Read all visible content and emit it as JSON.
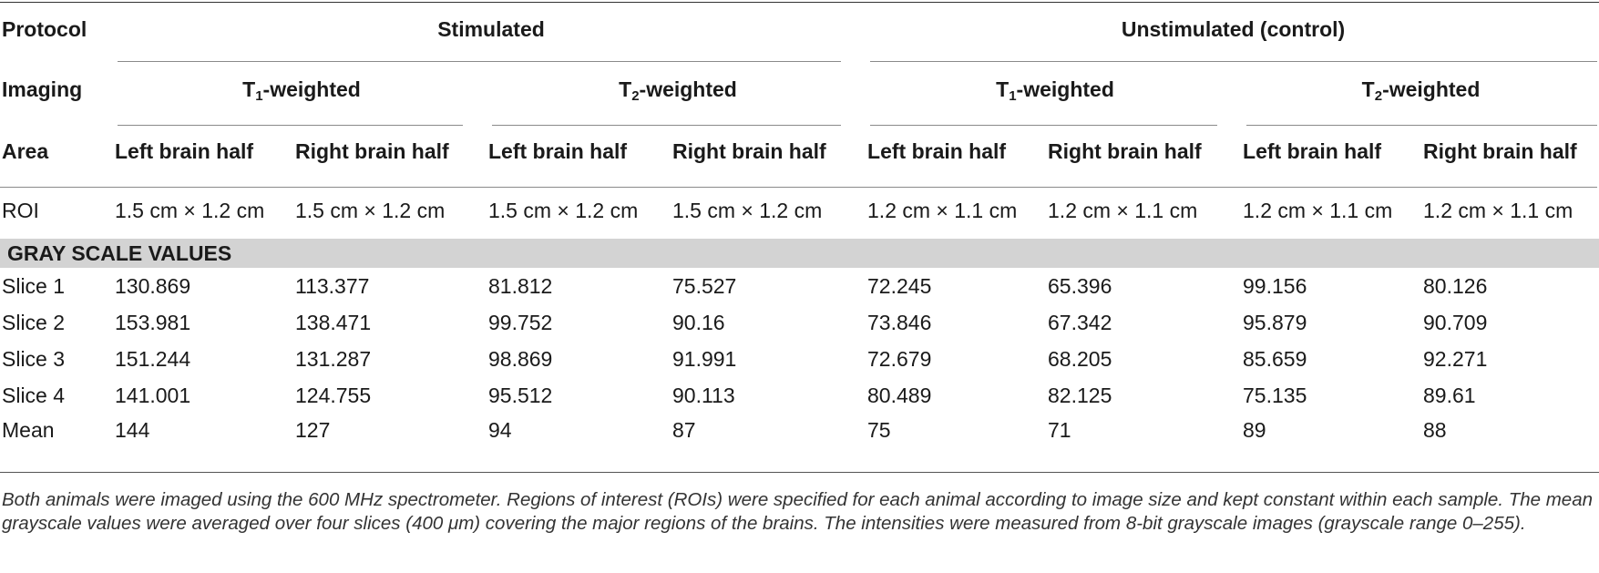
{
  "header": {
    "protocol_label": "Protocol",
    "imaging_label": "Imaging",
    "area_label": "Area",
    "roi_label": "ROI",
    "groups": [
      {
        "name": "Stimulated",
        "imaging": [
          {
            "prefix": "T",
            "sub": "1",
            "suffix": "-weighted"
          },
          {
            "prefix": "T",
            "sub": "2",
            "suffix": "-weighted"
          }
        ],
        "roi": "1.5 cm × 1.2 cm"
      },
      {
        "name": "Unstimulated (control)",
        "imaging": [
          {
            "prefix": "T",
            "sub": "1",
            "suffix": "-weighted"
          },
          {
            "prefix": "T",
            "sub": "2",
            "suffix": "-weighted"
          }
        ],
        "roi": "1.2 cm × 1.1 cm"
      }
    ],
    "areas": [
      "Left brain half",
      "Right brain half",
      "Left brain half",
      "Right brain half",
      "Left brain half",
      "Right brain half",
      "Left brain half",
      "Right brain half"
    ],
    "roi_values": [
      "1.5 cm × 1.2 cm",
      "1.5 cm × 1.2 cm",
      "1.5 cm × 1.2 cm",
      "1.5 cm × 1.2 cm",
      "1.2 cm × 1.1 cm",
      "1.2 cm × 1.1 cm",
      "1.2 cm × 1.1 cm",
      "1.2 cm × 1.1 cm"
    ]
  },
  "section_title": "GRAY SCALE VALUES",
  "rows": [
    {
      "label": "Slice 1",
      "values": [
        "130.869",
        "113.377",
        "81.812",
        "75.527",
        "72.245",
        "65.396",
        "99.156",
        "80.126"
      ]
    },
    {
      "label": "Slice 2",
      "values": [
        "153.981",
        "138.471",
        "99.752",
        "90.16",
        "73.846",
        "67.342",
        "95.879",
        "90.709"
      ]
    },
    {
      "label": "Slice 3",
      "values": [
        "151.244",
        "131.287",
        "98.869",
        "91.991",
        "72.679",
        "68.205",
        "85.659",
        "92.271"
      ]
    },
    {
      "label": "Slice 4",
      "values": [
        "141.001",
        "124.755",
        "95.512",
        "90.113",
        "80.489",
        "82.125",
        "75.135",
        "89.61"
      ]
    },
    {
      "label": "Mean",
      "values": [
        "144",
        "127",
        "94",
        "87",
        "75",
        "71",
        "89",
        "88"
      ]
    }
  ],
  "footnote": "Both animals were imaged using the 600 MHz spectrometer. Regions of interest (ROIs) were specified for each animal according to image size and kept constant within each sample. The mean grayscale values were averaged over four slices (400 μm) covering the major regions of the brains. The intensities were measured from 8-bit grayscale images (grayscale range 0–255)."
}
